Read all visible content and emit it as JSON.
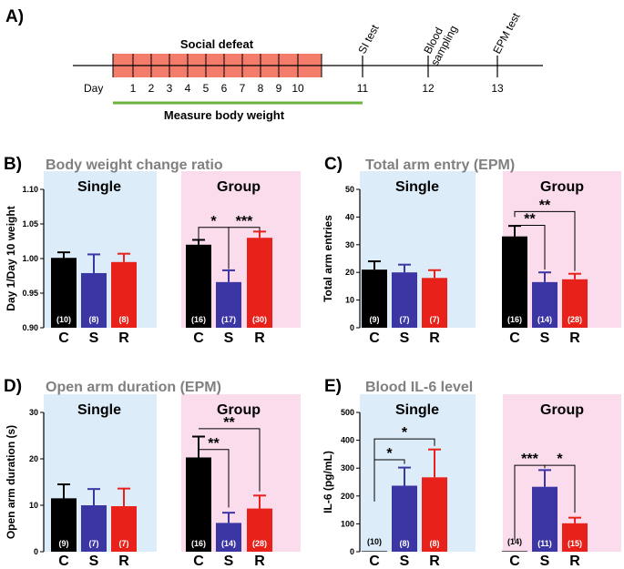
{
  "panel_a": {
    "letter": "A)",
    "social_defeat_label": "Social defeat",
    "day_label": "Day",
    "days": [
      "1",
      "2",
      "3",
      "4",
      "5",
      "6",
      "7",
      "8",
      "9",
      "10",
      "11",
      "12",
      "13"
    ],
    "events": [
      "SI test",
      "Blood sampling",
      "EPM test"
    ],
    "measure_label": "Measure body weight",
    "colors": {
      "defeat_band": "#f47c6a",
      "measure_line": "#6bb33a"
    }
  },
  "colors": {
    "single_bg": "#dcedf9",
    "group_bg": "#fbdcec",
    "C": "#000000",
    "S": "#3b36a3",
    "R": "#e8221a"
  },
  "chart_data": [
    {
      "id": "B",
      "letter": "B)",
      "title": "Body weight change ratio",
      "type": "bar",
      "ylabel": "Day 1/Day 10 weight",
      "ylim": [
        0.9,
        1.1
      ],
      "yticks": [
        "0.90",
        "0.95",
        "1.00",
        "1.05",
        "1.10"
      ],
      "yticks_v": [
        0.9,
        0.95,
        1.0,
        1.05,
        1.1
      ],
      "groups": [
        "Single",
        "Group"
      ],
      "categories": [
        "C",
        "S",
        "R"
      ],
      "series": [
        {
          "name": "Single",
          "values": [
            1.001,
            0.979,
            0.995
          ],
          "errors": [
            0.008,
            0.027,
            0.012
          ],
          "n": [
            "(10)",
            "(8)",
            "(8)"
          ]
        },
        {
          "name": "Group",
          "values": [
            1.02,
            0.966,
            1.03
          ],
          "errors": [
            0.007,
            0.017,
            0.009
          ],
          "n": [
            "(16)",
            "(17)",
            "(30)"
          ]
        }
      ],
      "significance": [
        {
          "group": 1,
          "from": 0,
          "to": 1,
          "label": "*",
          "y": 1.045,
          "drop_from": 1.028,
          "drop_to": 0.985
        },
        {
          "group": 1,
          "from": 1,
          "to": 2,
          "label": "***",
          "y": 1.045,
          "drop_from": 0.985,
          "drop_to": 1.04
        }
      ]
    },
    {
      "id": "C",
      "letter": "C)",
      "title": "Total arm entry (EPM)",
      "type": "bar",
      "ylabel": "Total arm entries",
      "ylim": [
        0,
        50
      ],
      "yticks": [
        "0",
        "10",
        "20",
        "30",
        "40",
        "50"
      ],
      "yticks_v": [
        0,
        10,
        20,
        30,
        40,
        50
      ],
      "groups": [
        "Single",
        "Group"
      ],
      "categories": [
        "C",
        "S",
        "R"
      ],
      "series": [
        {
          "name": "Single",
          "values": [
            21,
            20,
            18
          ],
          "errors": [
            3,
            2.8,
            2.8
          ],
          "n": [
            "(9)",
            "(7)",
            "(7)"
          ]
        },
        {
          "name": "Group",
          "values": [
            33,
            16.5,
            17.5
          ],
          "errors": [
            3.8,
            3.5,
            2
          ],
          "n": [
            "(16)",
            "(14)",
            "(28)"
          ]
        }
      ],
      "significance": [
        {
          "group": 1,
          "from": 0,
          "to": 1,
          "label": "**",
          "y": 37,
          "drop_from": 37,
          "drop_to": 21,
          "stair": true
        },
        {
          "group": 1,
          "from": 0,
          "to": 2,
          "label": "**",
          "y": 42,
          "drop_from": 40,
          "drop_to": 20.5,
          "stair": true
        }
      ]
    },
    {
      "id": "D",
      "letter": "D)",
      "title": "Open arm duration (EPM)",
      "type": "bar",
      "ylabel": "Open arm duration (s)",
      "ylim": [
        0,
        30
      ],
      "yticks": [
        "0",
        "10",
        "20",
        "30"
      ],
      "yticks_v": [
        0,
        10,
        20,
        30
      ],
      "groups": [
        "Single",
        "Group"
      ],
      "categories": [
        "C",
        "S",
        "R"
      ],
      "series": [
        {
          "name": "Single",
          "values": [
            11.5,
            10,
            9.8
          ],
          "errors": [
            3,
            3.5,
            3.8
          ],
          "n": [
            "(9)",
            "(7)",
            "(7)"
          ]
        },
        {
          "name": "Group",
          "values": [
            20.3,
            6.2,
            9.3
          ],
          "errors": [
            4.5,
            2.2,
            2.8
          ],
          "n": [
            "(16)",
            "(14)",
            "(28)"
          ]
        }
      ],
      "significance": [
        {
          "group": 1,
          "from": 0,
          "to": 1,
          "label": "**",
          "y": 22,
          "drop_from": 22,
          "drop_to": 9.5,
          "stair": true
        },
        {
          "group": 1,
          "from": 0,
          "to": 2,
          "label": "**",
          "y": 26.5,
          "drop_from": 26.5,
          "drop_to": 13,
          "stair": true
        }
      ]
    },
    {
      "id": "E",
      "letter": "E)",
      "title": "Blood IL-6 level",
      "type": "bar",
      "ylabel": "IL-6 (pg/mL)",
      "ylim": [
        0,
        500
      ],
      "yticks": [
        "0",
        "100",
        "200",
        "300",
        "400",
        "500"
      ],
      "yticks_v": [
        0,
        100,
        200,
        300,
        400,
        500
      ],
      "groups": [
        "Single",
        "Group"
      ],
      "categories": [
        "C",
        "S",
        "R"
      ],
      "series": [
        {
          "name": "Single",
          "values": [
            2,
            237,
            267
          ],
          "errors": [
            0,
            65,
            100
          ],
          "n": [
            "(10)",
            "(8)",
            "(8)"
          ]
        },
        {
          "name": "Group",
          "values": [
            2,
            233,
            102
          ],
          "errors": [
            0,
            60,
            20
          ],
          "n": [
            "(14)",
            "(11)",
            "(15)"
          ]
        }
      ],
      "significance": [
        {
          "group": 0,
          "from": 0,
          "to": 1,
          "label": "*",
          "y": 330,
          "drop_from": 180,
          "drop_to": 315
        },
        {
          "group": 0,
          "from": 0,
          "to": 2,
          "label": "*",
          "y": 405,
          "drop_from": 190,
          "drop_to": 380
        },
        {
          "group": 1,
          "from": 0,
          "to": 1,
          "label": "***",
          "y": 310,
          "drop_from": 40,
          "drop_to": 300
        },
        {
          "group": 1,
          "from": 1,
          "to": 2,
          "label": "*",
          "y": 310,
          "drop_from": 300,
          "drop_to": 140
        }
      ]
    }
  ]
}
